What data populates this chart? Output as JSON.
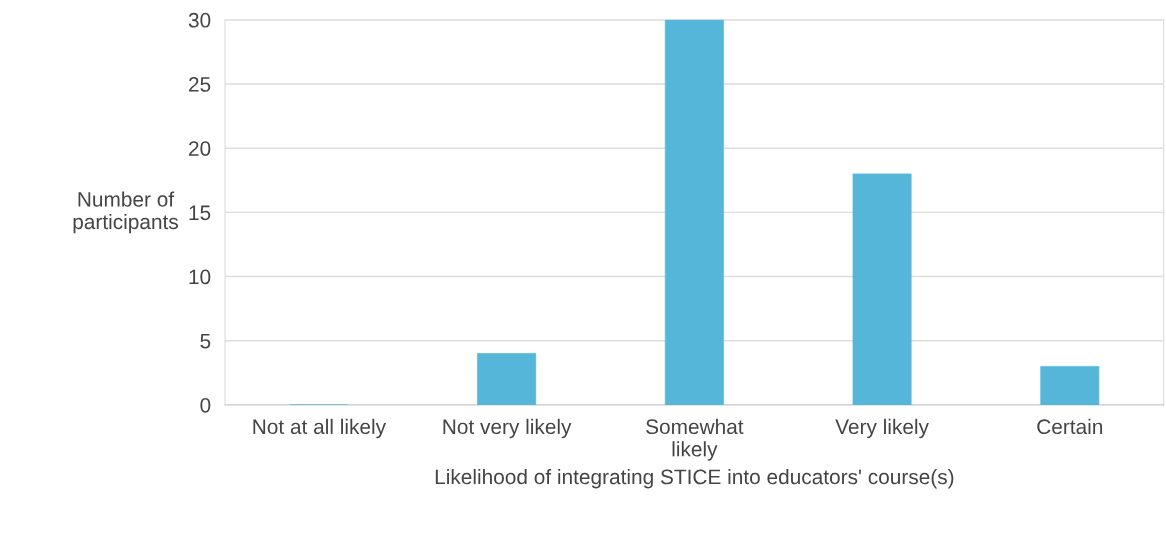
{
  "chart_data": {
    "type": "bar",
    "xlabel": "Likelihood of integrating STICE into educators' course(s)",
    "ylabel": "Number of\nparticipants",
    "categories": [
      "Not at all likely",
      "Not very likely",
      "Somewhat\nlikely",
      "Very likely",
      "Certain"
    ],
    "values": [
      0,
      4,
      30,
      18,
      3
    ],
    "color": "#56b6d9",
    "ylim": [
      0,
      30
    ],
    "yticks": [
      0,
      5,
      10,
      15,
      20,
      25,
      30
    ],
    "grid": "y",
    "legend": false
  }
}
